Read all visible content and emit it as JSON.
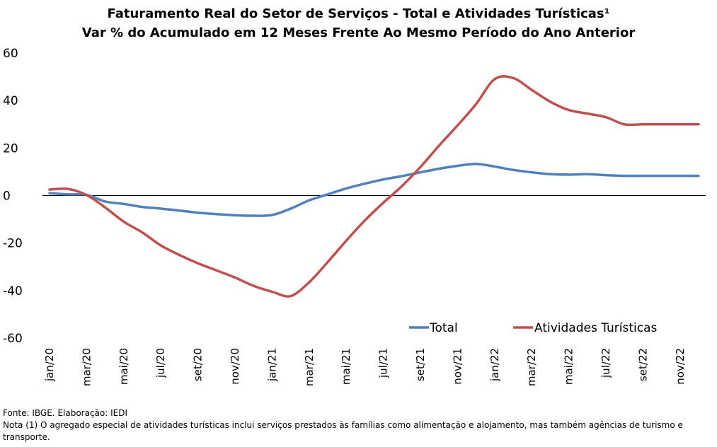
{
  "title_line1": "Faturamento Real do Setor de Serviços - Total e Atividades Turísticas¹",
  "title_line2": "Var % do Acumulado em 12 Meses Frente Ao Mesmo Período do Ano Anterior",
  "footer": {
    "source": "Fonte: IBGE. Elaboração: IEDI",
    "note": "Nota (1) O agregado especial de atividades turísticas inclui serviços prestados às famílias como alimentação e alojamento, mas também agências de turismo e transporte."
  },
  "chart_data": {
    "type": "line",
    "title": "Faturamento Real do Setor de Serviços - Total e Atividades Turísticas¹",
    "subtitle": "Var % do Acumulado em 12 Meses Frente Ao Mesmo Período do Ano Anterior",
    "xlabel": "",
    "ylabel": "",
    "ylim": [
      -60,
      60
    ],
    "yticks": [
      60,
      40,
      20,
      0,
      -20,
      -40,
      -60
    ],
    "grid": false,
    "legend_position": "bottom-right",
    "categories": [
      "jan/20",
      "fev/20",
      "mar/20",
      "abr/20",
      "mai/20",
      "jun/20",
      "jul/20",
      "ago/20",
      "set/20",
      "out/20",
      "nov/20",
      "dez/20",
      "jan/21",
      "fev/21",
      "mar/21",
      "abr/21",
      "mai/21",
      "jun/21",
      "jul/21",
      "ago/21",
      "set/21",
      "out/21",
      "nov/21",
      "dez/21",
      "jan/22",
      "fev/22",
      "mar/22",
      "abr/22",
      "mai/22",
      "jun/22",
      "jul/22",
      "ago/22",
      "set/22",
      "out/22",
      "nov/22",
      "dez/22"
    ],
    "tick_labels": [
      "jan/20",
      "mar/20",
      "mai/20",
      "jul/20",
      "set/20",
      "nov/20",
      "jan/21",
      "mar/21",
      "mai/21",
      "jul/21",
      "set/21",
      "nov/21",
      "jan/22",
      "mar/22",
      "mai/22",
      "jul/22",
      "set/22",
      "nov/22"
    ],
    "series": [
      {
        "name": "Total",
        "color": "#4F81BD",
        "values": [
          1.0,
          0.5,
          0.3,
          -2.5,
          -3.5,
          -4.8,
          -5.5,
          -6.3,
          -7.2,
          -7.8,
          -8.3,
          -8.5,
          -8.2,
          -5.5,
          -2.0,
          0.5,
          3.0,
          5.0,
          6.8,
          8.2,
          9.8,
          11.3,
          12.5,
          13.3,
          12.2,
          10.8,
          9.8,
          9.0,
          8.8,
          9.0,
          8.6,
          8.3,
          8.3,
          8.3,
          8.3,
          8.3
        ]
      },
      {
        "name": "Atividades Turísticas",
        "color": "#C0504D",
        "values": [
          2.5,
          2.8,
          0.2,
          -5.0,
          -11.0,
          -15.5,
          -21.0,
          -25.0,
          -28.5,
          -31.5,
          -34.5,
          -38.0,
          -40.5,
          -42.3,
          -36.5,
          -28.0,
          -19.0,
          -10.5,
          -3.0,
          4.0,
          12.0,
          21.0,
          29.5,
          38.5,
          49.0,
          49.5,
          44.5,
          39.5,
          36.0,
          34.5,
          33.0,
          30.0,
          30.0,
          30.0,
          30.0,
          30.0
        ]
      }
    ]
  }
}
